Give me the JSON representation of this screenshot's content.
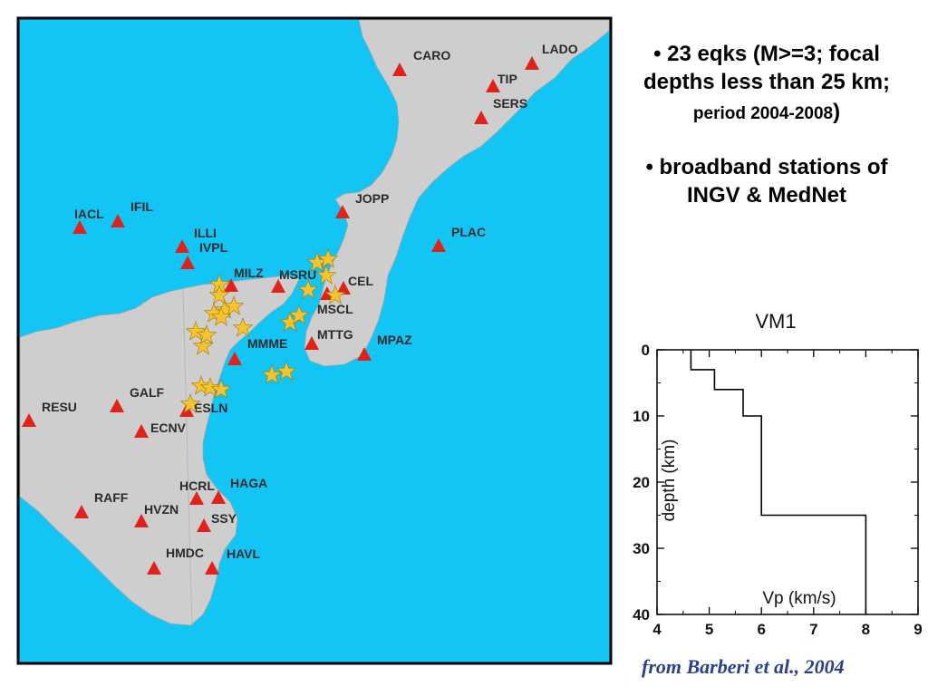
{
  "colors": {
    "sea": "#13c5f4",
    "land": "#cecece",
    "station": "#e0221a",
    "event": "#f5c430",
    "citation": "#2b3f8f"
  },
  "map": {
    "stations": [
      {
        "code": "CARO"
      },
      {
        "code": "LADO"
      },
      {
        "code": "TIP"
      },
      {
        "code": "SERS"
      },
      {
        "code": "JOPP"
      },
      {
        "code": "PLAC"
      },
      {
        "code": "IACL"
      },
      {
        "code": "IFIL"
      },
      {
        "code": "ILLI"
      },
      {
        "code": "IVPL"
      },
      {
        "code": "MILZ"
      },
      {
        "code": "MSRU"
      },
      {
        "code": "CEL"
      },
      {
        "code": "MSCL"
      },
      {
        "code": "MTTG"
      },
      {
        "code": "MPAZ"
      },
      {
        "code": "MMME"
      },
      {
        "code": "RESU"
      },
      {
        "code": "GALF"
      },
      {
        "code": "ESLN"
      },
      {
        "code": "ECNV"
      },
      {
        "code": "HCRL"
      },
      {
        "code": "HAGA"
      },
      {
        "code": "RAFF"
      },
      {
        "code": "HVZN"
      },
      {
        "code": "SSY"
      },
      {
        "code": "HMDC"
      },
      {
        "code": "HAVL"
      }
    ],
    "earthquake_count": 23
  },
  "bullets": {
    "b1_main": "• 23 eqks (M>=3; focal depths less than 25 km;",
    "b1_small": " period 2004-2008",
    "b1_end": ")",
    "b2": "• broadband stations of INGV & MedNet"
  },
  "chart_data": {
    "type": "line",
    "title": "VM1",
    "xlabel": "Vp (km/s)",
    "ylabel": "depth (km)",
    "xlim": [
      4,
      9
    ],
    "ylim": [
      40,
      0
    ],
    "x_ticks": [
      4,
      5,
      6,
      7,
      8,
      9
    ],
    "y_ticks": [
      0,
      10,
      20,
      30,
      40
    ],
    "grid": false,
    "series": [
      {
        "x": [
          4.65,
          4.65,
          5.1,
          5.1,
          5.65,
          5.65,
          6.0,
          6.0,
          8.0,
          8.0
        ],
        "y": [
          0,
          3,
          3,
          6,
          6,
          10,
          10,
          25,
          25,
          40
        ]
      }
    ]
  },
  "citation": "from Barberi et al., 2004"
}
